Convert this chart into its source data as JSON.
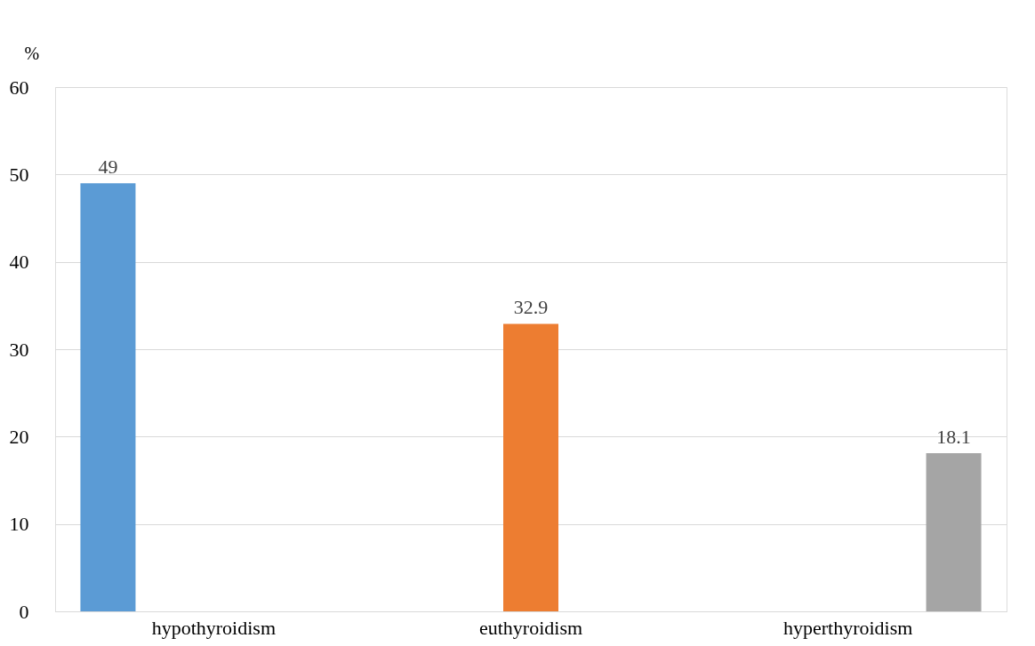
{
  "chart_data": {
    "type": "bar",
    "ylabel": "%",
    "categories": [
      "hypothyroidism",
      "euthyroidism",
      "hyperthyroidism"
    ],
    "values": [
      49,
      32.9,
      18.1
    ],
    "colors": [
      "#5b9bd5",
      "#ed7d31",
      "#a5a5a5"
    ],
    "ylim": [
      0,
      60
    ],
    "yticks": [
      0,
      10,
      20,
      30,
      40,
      50,
      60
    ],
    "grid": "y",
    "data_labels": true
  }
}
